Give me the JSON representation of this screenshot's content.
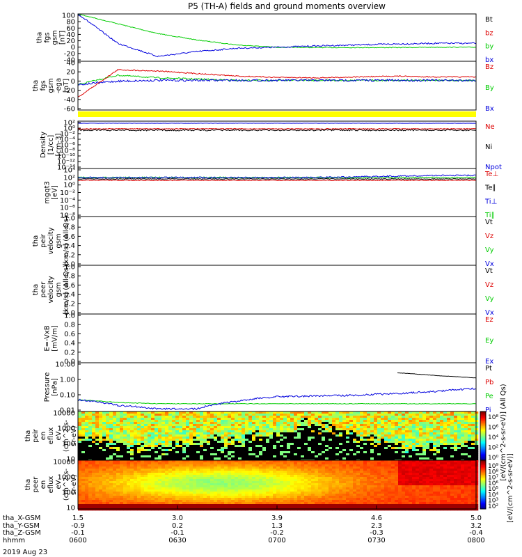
{
  "title": "P5 (TH-A) fields and ground moments overview",
  "date_label": "2019 Aug 23",
  "colors": {
    "black": "#000000",
    "red": "#dd0000",
    "green": "#00cc00",
    "blue": "#0000dd",
    "yellow": "#ffff00"
  },
  "panels": [
    {
      "id": "fgs",
      "ylabel": [
        "tha",
        "fgs",
        "gsm",
        "[nT]"
      ],
      "yticks": [
        "100",
        "80",
        "60",
        "40",
        "20",
        "0",
        "-20",
        "-40"
      ],
      "legend": [
        {
          "text": "Bt",
          "color": "black"
        },
        {
          "text": "bz",
          "color": "red"
        },
        {
          "text": "by",
          "color": "green"
        },
        {
          "text": "bx",
          "color": "blue"
        }
      ]
    },
    {
      "id": "fgs_gse",
      "ylabel": [
        "tha",
        "fgs",
        "gsm",
        "-ega",
        "[nT]"
      ],
      "yticks": [
        "40",
        "20",
        "0",
        "-20",
        "-40",
        "-60"
      ],
      "legend": [
        {
          "text": "Bz",
          "color": "red"
        },
        {
          "text": "By",
          "color": "green"
        },
        {
          "text": "Bx",
          "color": "blue"
        }
      ]
    },
    {
      "id": "density",
      "ylabel": [
        "Density",
        "[1/cc]",
        "[cm-3]"
      ],
      "yticks": [
        "10²",
        "10⁰",
        "10⁻²",
        "10⁻⁴",
        "10⁻⁶",
        "10⁻⁸",
        "10⁻¹⁰",
        "10⁻¹²",
        "10⁻¹⁴"
      ],
      "legend": [
        {
          "text": "Ne",
          "color": "red"
        },
        {
          "text": "Ni",
          "color": "black"
        },
        {
          "text": "Npot",
          "color": "blue"
        }
      ]
    },
    {
      "id": "temp",
      "ylabel": [
        "mgqt3",
        "[eV]"
      ],
      "yticks": [
        "10⁴",
        "10²",
        "10⁰",
        "10⁻²",
        "10⁻⁴",
        "10⁻⁶",
        "10⁻⁸"
      ],
      "legend": [
        {
          "text": "Te⊥",
          "color": "red"
        },
        {
          "text": "Te∥",
          "color": "black"
        },
        {
          "text": "Ti⊥",
          "color": "blue"
        },
        {
          "text": "Ti∥",
          "color": "green"
        }
      ]
    },
    {
      "id": "vi",
      "ylabel": [
        "tha",
        "peir",
        "velocity",
        "gsm",
        "[km/s] (All Qs)"
      ],
      "yticks": [
        "1.0",
        "0.8",
        "0.6",
        "0.4",
        "0.2",
        "0.0"
      ],
      "legend": [
        {
          "text": "Vt",
          "color": "black"
        },
        {
          "text": "Vz",
          "color": "red"
        },
        {
          "text": "Vy",
          "color": "green"
        },
        {
          "text": "Vx",
          "color": "blue"
        }
      ]
    },
    {
      "id": "ve",
      "ylabel": [
        "tha",
        "peer",
        "velocity",
        "gsm",
        "[km/s] (All Qs)"
      ],
      "yticks": [
        "1.0",
        "0.8",
        "0.6",
        "0.4",
        "0.2",
        "0.0"
      ],
      "legend": [
        {
          "text": "Vt",
          "color": "black"
        },
        {
          "text": "Vz",
          "color": "red"
        },
        {
          "text": "Vy",
          "color": "green"
        },
        {
          "text": "Vx",
          "color": "blue"
        }
      ]
    },
    {
      "id": "efield",
      "ylabel": [
        "E=-VxB",
        "[mV/m]"
      ],
      "yticks": [
        "1.0",
        "0.8",
        "0.6",
        "0.4",
        "0.2",
        "0.0"
      ],
      "legend": [
        {
          "text": "Ez",
          "color": "red"
        },
        {
          "text": "Ey",
          "color": "green"
        },
        {
          "text": "Ex",
          "color": "blue"
        }
      ]
    },
    {
      "id": "pressure",
      "ylabel": [
        "Pressure",
        "[nPa]"
      ],
      "yticks": [
        "10.00",
        "1.00",
        "0.10",
        "0.01"
      ],
      "legend": [
        {
          "text": "Pt",
          "color": "black"
        },
        {
          "text": "Pb",
          "color": "red"
        },
        {
          "text": "Pe",
          "color": "green"
        },
        {
          "text": "Pi",
          "color": "blue"
        }
      ]
    },
    {
      "id": "ion_spec",
      "ylabel": [
        "tha",
        "peir",
        "en",
        "eflux",
        "eV",
        "(cm^2-s-",
        "sr-eV)"
      ],
      "yticks": [
        "10000",
        "1000",
        "100",
        "10"
      ]
    },
    {
      "id": "elec_spec",
      "ylabel": [
        "tha",
        "peer",
        "en",
        "eflux",
        "eV",
        "(cm^2-s-",
        "sr-eV)"
      ],
      "yticks": [
        "10000",
        "1000",
        "100",
        "10"
      ]
    }
  ],
  "colorbars": [
    {
      "label": "[eV/(cm^2-s-sr-eV)] (All Qs)",
      "ticks": [
        "10⁸",
        "10⁶",
        "10⁴",
        "10²",
        "10⁰"
      ]
    },
    {
      "label": "[eV/(cm^2-s-sr-eV)]",
      "ticks": [
        "10⁹",
        "10⁸",
        "10⁷",
        "10⁶",
        "10⁵",
        "10⁴",
        "10³",
        "10²"
      ]
    }
  ],
  "xaxis": {
    "row_labels": [
      "tha_X-GSM",
      "tha_Y-GSM",
      "tha_Z-GSM",
      "hhmm"
    ],
    "columns": [
      {
        "values": [
          "1.5",
          "-0.9",
          "-0.1",
          "0600"
        ]
      },
      {
        "values": [
          "3.0",
          "0.2",
          "-0.1",
          "0630"
        ]
      },
      {
        "values": [
          "3.9",
          "1.3",
          "-0.2",
          "0700"
        ]
      },
      {
        "values": [
          "4.6",
          "2.3",
          "-0.3",
          "0730"
        ]
      },
      {
        "values": [
          "5.0",
          "3.2",
          "-0.4",
          "0800"
        ]
      }
    ]
  },
  "chart_data": {
    "type": "line",
    "x_range": [
      "0600",
      "0800"
    ],
    "x": [
      0.0,
      0.1,
      0.2,
      0.3,
      0.4,
      0.5,
      0.6,
      0.7,
      0.8,
      0.9,
      1.0
    ],
    "x_unit": "fraction of interval 0600-0800",
    "series": [
      {
        "panel": "fgs",
        "name": "by",
        "values": [
          100,
          70,
          40,
          20,
          5,
          -2,
          -3,
          -3,
          -3,
          -2,
          -2
        ]
      },
      {
        "panel": "fgs",
        "name": "bx",
        "values": [
          100,
          10,
          -30,
          -15,
          -5,
          -2,
          2,
          5,
          8,
          10,
          10
        ]
      },
      {
        "panel": "fgs_gse",
        "name": "Bz",
        "values": [
          -40,
          25,
          22,
          16,
          10,
          7,
          6,
          8,
          10,
          8,
          8
        ]
      },
      {
        "panel": "fgs_gse",
        "name": "By",
        "values": [
          -10,
          12,
          6,
          3,
          0,
          0,
          0,
          0,
          0,
          0,
          0
        ]
      },
      {
        "panel": "fgs_gse",
        "name": "Bx",
        "values": [
          -10,
          -2,
          0,
          0,
          0,
          0,
          0,
          0,
          0,
          0,
          0
        ]
      },
      {
        "panel": "pressure",
        "name": "Pt",
        "values": [
          null,
          null,
          null,
          null,
          null,
          null,
          null,
          null,
          5,
          3,
          2
        ]
      },
      {
        "panel": "pressure",
        "name": "Pe",
        "values": [
          0.04,
          0.025,
          0.02,
          0.02,
          0.02,
          0.02,
          0.02,
          0.02,
          0.02,
          0.02,
          0.02
        ]
      },
      {
        "panel": "pressure",
        "name": "Pi",
        "values": [
          0.04,
          0.015,
          0.008,
          0.008,
          0.03,
          0.07,
          0.08,
          0.09,
          0.12,
          0.18,
          0.3
        ]
      }
    ]
  }
}
